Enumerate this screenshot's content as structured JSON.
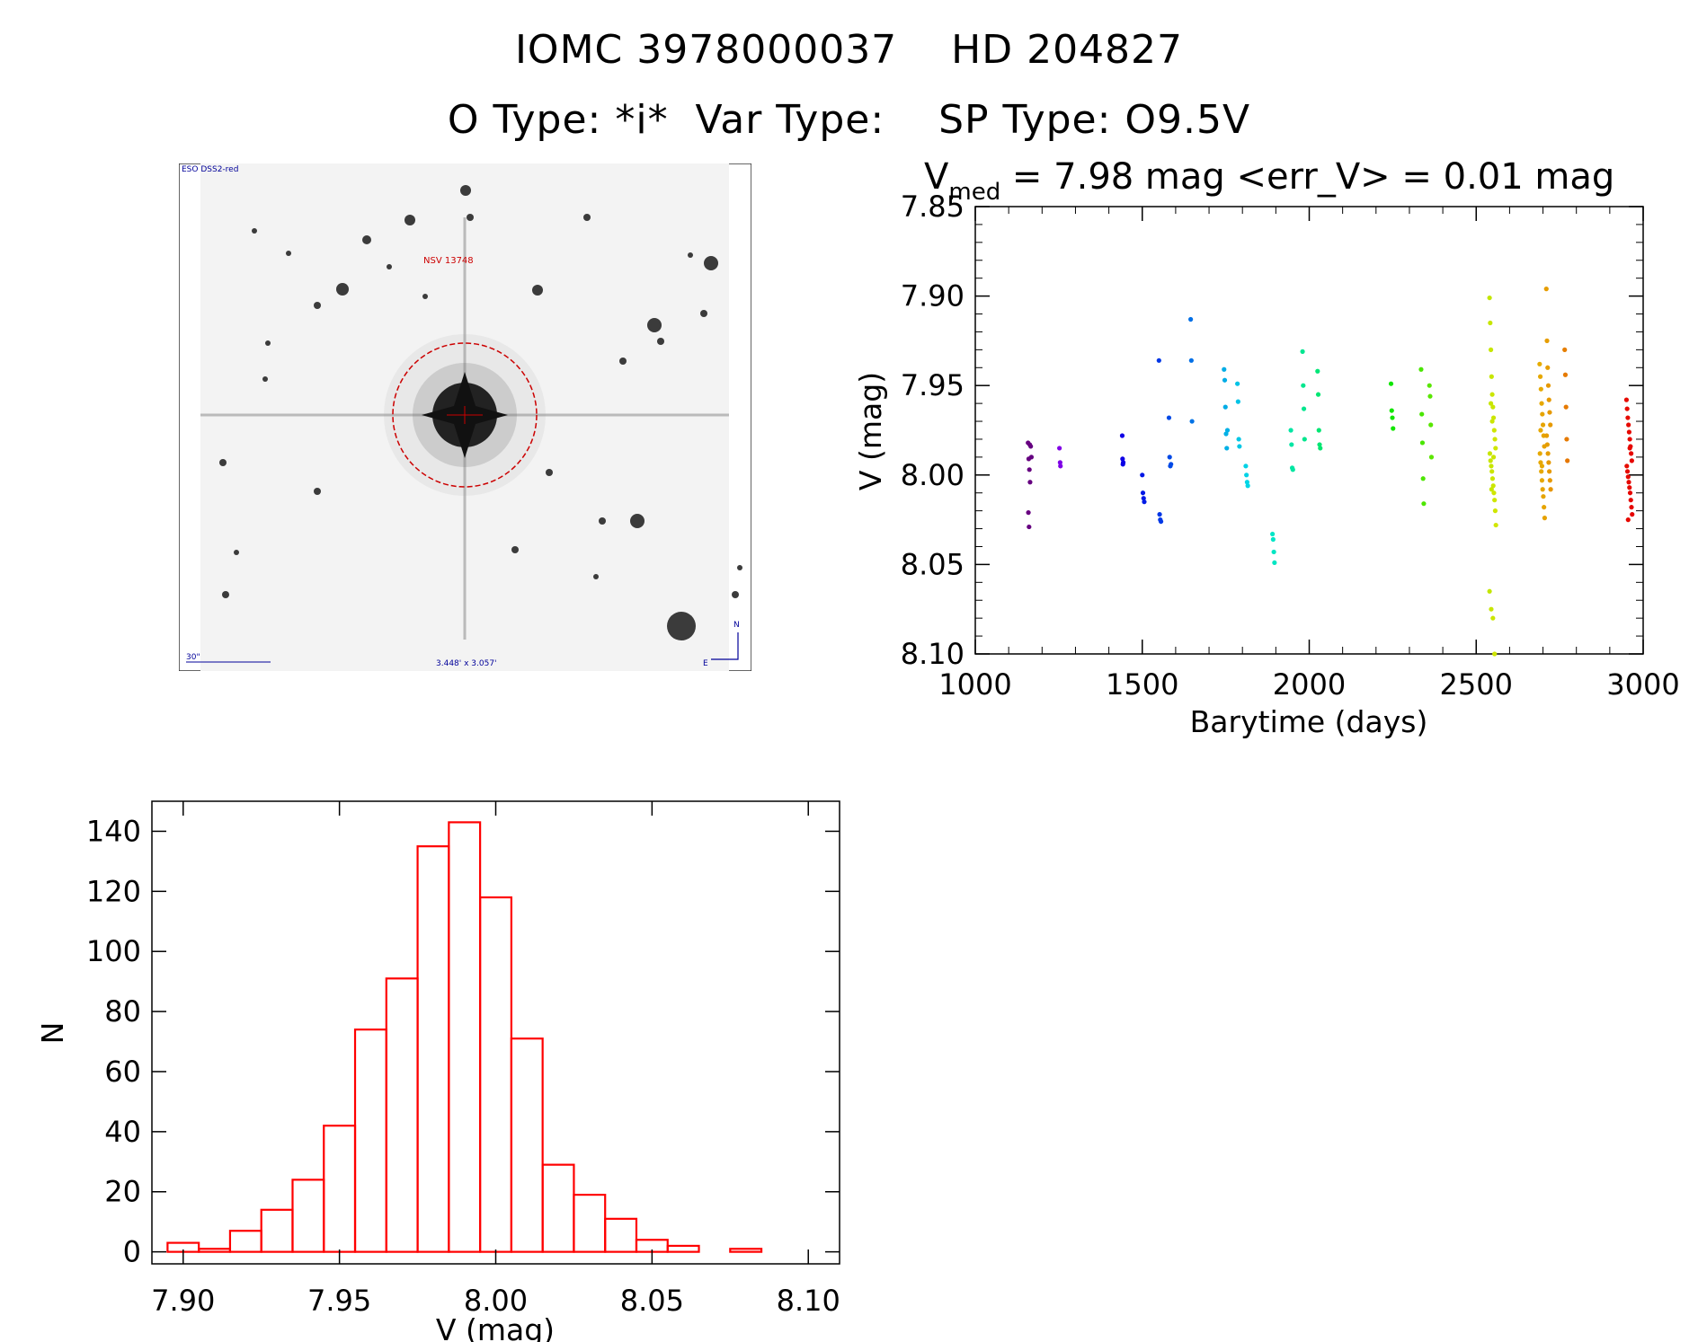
{
  "header": {
    "line1": "IOMC 3978000037    HD 204827",
    "line2": "O Type: *i*  Var Type:    SP Type: O9.5V"
  },
  "finder_chart": {
    "survey_label": "ESO DSS2-red",
    "object_label": "NSV 13748",
    "scale_label": "30\"",
    "size_label": "3.448' x 3.057'",
    "north_label": "N",
    "east_label": "E"
  },
  "chart_data": [
    {
      "type": "scatter",
      "title_parts": {
        "v": "V",
        "sub": "med",
        "rest": " = 7.98 mag <err_V> = 0.01 mag"
      },
      "xlabel": "Barytime (days)",
      "ylabel": "V (mag)",
      "xlim": [
        1000,
        3000
      ],
      "ylim": [
        8.1,
        7.85
      ],
      "xticks": [
        1000,
        1500,
        2000,
        2500,
        3000
      ],
      "yticks": [
        "7.85",
        "7.90",
        "7.95",
        "8.00",
        "8.05",
        "8.10"
      ],
      "grid": false,
      "color_scale": "point color follows time: dark purple → blue → cyan → green → yellow → orange → red",
      "series": [
        {
          "x": [
            1158,
            1160,
            1162,
            1164,
            1166,
            1168,
            1159,
            1161,
            1163
          ],
          "y": [
            7.982,
            7.991,
            7.997,
            8.004,
            7.984,
            7.99,
            8.021,
            8.029,
            7.983
          ]
        },
        {
          "x": [
            1252,
            1254,
            1255
          ],
          "y": [
            7.985,
            7.993,
            7.995
          ]
        },
        {
          "x": [
            1440,
            1441,
            1442,
            1443
          ],
          "y": [
            7.978,
            7.991,
            7.994,
            7.993
          ]
        },
        {
          "x": [
            1500,
            1502,
            1504,
            1506,
            1550,
            1552,
            1554,
            1556,
            1580,
            1582,
            1584,
            1586,
            1645,
            1647,
            1649
          ],
          "y": [
            8.0,
            8.01,
            8.013,
            8.015,
            7.936,
            8.022,
            8.025,
            8.026,
            7.968,
            7.99,
            7.995,
            7.994,
            7.913,
            7.936,
            7.97
          ]
        },
        {
          "x": [
            1745,
            1747,
            1749,
            1751,
            1753,
            1755,
            1785,
            1787,
            1789,
            1791,
            1810,
            1812,
            1814,
            1816
          ],
          "y": [
            7.941,
            7.947,
            7.962,
            7.977,
            7.985,
            7.975,
            7.949,
            7.959,
            7.98,
            7.984,
            7.995,
            8.0,
            8.004,
            8.006
          ]
        },
        {
          "x": [
            1890,
            1892,
            1894,
            1896
          ],
          "y": [
            8.033,
            8.036,
            8.043,
            8.049
          ]
        },
        {
          "x": [
            1945,
            1947,
            1949,
            1951,
            1980,
            1982,
            1984,
            1986,
            2025,
            2027,
            2029,
            2031,
            2033
          ],
          "y": [
            7.975,
            7.983,
            7.996,
            7.997,
            7.931,
            7.95,
            7.963,
            7.98,
            7.942,
            7.955,
            7.975,
            7.983,
            7.985
          ]
        },
        {
          "x": [
            2245,
            2247,
            2249,
            2251,
            2335,
            2337,
            2339,
            2341,
            2343,
            2360,
            2362,
            2364,
            2366
          ],
          "y": [
            7.949,
            7.964,
            7.968,
            7.974,
            7.941,
            7.966,
            7.982,
            8.002,
            8.016,
            7.95,
            7.956,
            7.972,
            7.99
          ]
        },
        {
          "x": [
            2540,
            2542,
            2544,
            2546,
            2548,
            2550,
            2552,
            2554,
            2556,
            2558,
            2541,
            2543,
            2545,
            2547,
            2549,
            2551,
            2553,
            2555,
            2557,
            2559,
            2540,
            2545,
            2550,
            2555,
            2548,
            2552,
            2546,
            2544
          ],
          "y": [
            7.901,
            7.915,
            7.93,
            7.945,
            7.955,
            7.962,
            7.968,
            7.975,
            7.98,
            7.985,
            7.988,
            7.992,
            7.995,
            7.998,
            8.002,
            8.006,
            8.01,
            8.014,
            8.02,
            8.028,
            8.065,
            8.075,
            8.08,
            8.1,
            7.97,
            7.99,
            8.008,
            7.96
          ]
        },
        {
          "x": [
            2690,
            2692,
            2694,
            2696,
            2698,
            2700,
            2702,
            2704,
            2691,
            2693,
            2695,
            2697,
            2699,
            2701,
            2703,
            2705,
            2693,
            2697
          ],
          "y": [
            7.938,
            7.945,
            7.952,
            7.96,
            7.966,
            7.972,
            7.978,
            7.984,
            7.988,
            7.993,
            7.998,
            8.003,
            8.008,
            8.012,
            8.018,
            8.024,
            7.975,
            7.995
          ]
        },
        {
          "x": [
            2710,
            2712,
            2714,
            2716,
            2718,
            2720,
            2722,
            2711,
            2713,
            2715,
            2717,
            2719,
            2721,
            2723,
            2765,
            2767,
            2769,
            2771,
            2773
          ],
          "y": [
            7.896,
            7.925,
            7.94,
            7.95,
            7.958,
            7.965,
            7.972,
            7.978,
            7.983,
            7.988,
            7.993,
            7.998,
            8.003,
            8.008,
            7.93,
            7.944,
            7.962,
            7.98,
            7.992
          ]
        },
        {
          "x": [
            2950,
            2952,
            2954,
            2956,
            2958,
            2960,
            2962,
            2964,
            2966,
            2951,
            2953,
            2955,
            2957,
            2959,
            2961,
            2963,
            2965,
            2967,
            2955,
            2960
          ],
          "y": [
            7.958,
            7.963,
            7.968,
            7.972,
            7.976,
            7.98,
            7.984,
            7.988,
            7.992,
            7.995,
            7.998,
            8.001,
            8.004,
            8.007,
            8.01,
            8.014,
            8.018,
            8.022,
            8.025,
            7.985
          ]
        }
      ]
    },
    {
      "type": "bar",
      "xlabel": "V (mag)",
      "ylabel": "N",
      "xlim": [
        7.89,
        8.11
      ],
      "ylim": [
        -4,
        150
      ],
      "xticks": [
        "7.90",
        "7.95",
        "8.00",
        "8.05",
        "8.10"
      ],
      "yticks": [
        "0",
        "20",
        "40",
        "60",
        "80",
        "100",
        "120",
        "140"
      ],
      "bin_width": 0.01,
      "bin_starts": [
        7.895,
        7.905,
        7.915,
        7.925,
        7.935,
        7.945,
        7.955,
        7.965,
        7.975,
        7.985,
        7.995,
        8.005,
        8.015,
        8.025,
        8.035,
        8.045,
        8.055,
        8.065,
        8.075,
        8.085,
        8.095
      ],
      "values": [
        3,
        1,
        7,
        14,
        24,
        42,
        74,
        91,
        135,
        143,
        118,
        71,
        29,
        19,
        11,
        4,
        2,
        0,
        1,
        0,
        0
      ],
      "color": "#ff0000"
    }
  ]
}
